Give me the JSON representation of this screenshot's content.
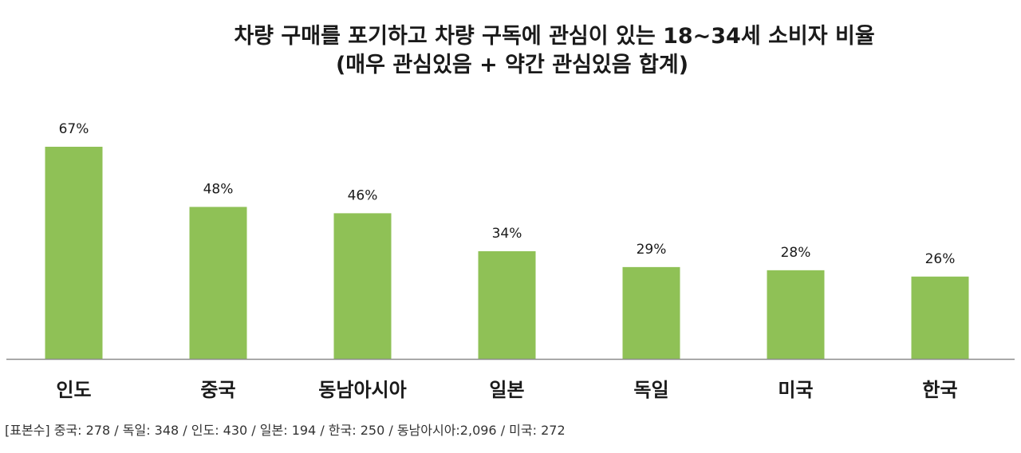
{
  "title_line1": "차량 구매를 포기하고 차량 구독에 관심이 있는 18~34세 소비자 비율",
  "title_line2": "(매우 관심있음 + 약간 관심있음 합계)",
  "footnote": "[표본수] 중국: 278 / 독일: 348 / 인도: 430 / 일본: 194 / 한국: 250 / 동남아시아:2,096 / 미국: 272",
  "colors": {
    "bar": "#8fc156",
    "axis": "#8c8c8c",
    "text": "#1a1a1a"
  },
  "chart_data": {
    "type": "bar",
    "title": "차량 구매를 포기하고 차량 구독에 관심이 있는 18~34세 소비자 비율 (매우 관심있음 + 약간 관심있음 합계)",
    "categories": [
      "인도",
      "중국",
      "동남아시아",
      "일본",
      "독일",
      "미국",
      "한국"
    ],
    "values": [
      67,
      48,
      46,
      34,
      29,
      28,
      26
    ],
    "data_labels": [
      "67%",
      "48%",
      "46%",
      "34%",
      "29%",
      "28%",
      "26%"
    ],
    "unit": "%",
    "ylim": [
      0,
      80
    ],
    "grid": false,
    "legend": "none",
    "xlabel": "",
    "ylabel": ""
  }
}
